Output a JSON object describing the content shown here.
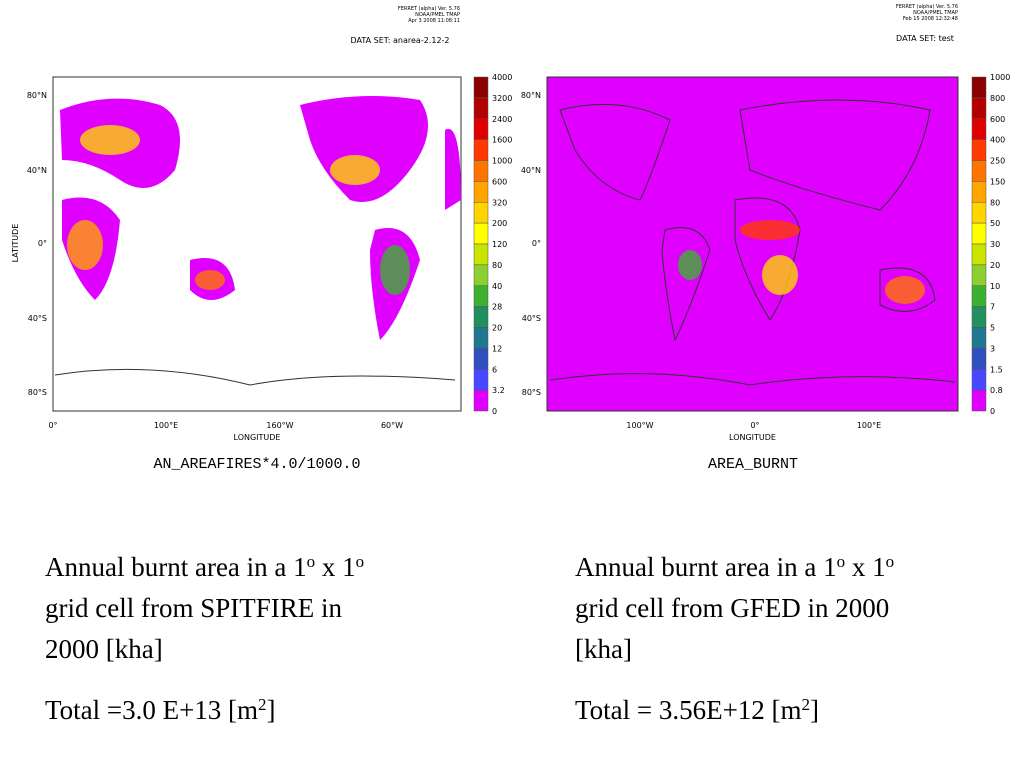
{
  "panels": [
    {
      "header": [
        "FERRET (alpha) Ver. 5.76",
        "NOAA/PMEL TMAP",
        "Apr 3 2008 11:08:11"
      ],
      "dataset": "DATA SET: anarea-2.12-2",
      "y_axis_label": "LATITUDE",
      "x_axis_label": "LONGITUDE",
      "yticks": [
        "80°N",
        "40°N",
        "0°",
        "40°S",
        "80°S"
      ],
      "xticks": [
        "0°",
        "100°E",
        "160°W",
        "60°W"
      ],
      "colorbar_labels": [
        "4000",
        "3200",
        "2400",
        "1600",
        "1000",
        "600",
        "320",
        "200",
        "120",
        "80",
        "40",
        "28",
        "20",
        "12",
        "6",
        "3.2",
        "0"
      ],
      "variable": "AN_AREAFIRES*4.0/1000.0"
    },
    {
      "header": [
        "FERRET (alpha) Ver. 5.76",
        "NOAA/PMEL TMAP",
        "Feb 15 2008 12:32:48"
      ],
      "dataset": "DATA SET: test",
      "x_axis_label": "LONGITUDE",
      "yticks": [
        "80°N",
        "40°N",
        "0°",
        "40°S",
        "80°S"
      ],
      "xticks": [
        "100°W",
        "0°",
        "100°E"
      ],
      "colorbar_labels": [
        "1000",
        "800",
        "600",
        "400",
        "250",
        "150",
        "80",
        "50",
        "30",
        "20",
        "10",
        "7",
        "5",
        "3",
        "1.5",
        "0.8",
        "0"
      ],
      "variable": "AREA_BURNT"
    }
  ],
  "colorbar_colors": [
    "#8b0000",
    "#b40000",
    "#e00000",
    "#ff3a00",
    "#ff7400",
    "#ffa400",
    "#ffd400",
    "#ffff00",
    "#c8e400",
    "#8cd030",
    "#3cb030",
    "#209060",
    "#1f7890",
    "#3050c0",
    "#4848ff",
    "#e000ff"
  ],
  "captions": [
    {
      "lines": [
        [
          {
            "t": "Annual burnt area in a 1"
          },
          {
            "sup": "o"
          },
          {
            "t": " x 1"
          },
          {
            "sup": "o"
          }
        ],
        [
          {
            "t": "grid cell from SPITFIRE in"
          }
        ],
        [
          {
            "t": "2000 [kha]"
          }
        ]
      ],
      "total": [
        {
          "t": "Total =3.0 E+13 [m"
        },
        {
          "sup": "2"
        },
        {
          "t": "]"
        }
      ]
    },
    {
      "lines": [
        [
          {
            "t": "Annual burnt area in a 1"
          },
          {
            "sup": "o"
          },
          {
            "t": " x 1"
          },
          {
            "sup": "o"
          }
        ],
        [
          {
            "t": "grid cell from GFED in 2000"
          }
        ],
        [
          {
            "t": "[kha]"
          }
        ]
      ],
      "total": [
        {
          "t": "Total = 3.56E+12 [m"
        },
        {
          "sup": "2"
        },
        {
          "t": "]"
        }
      ]
    }
  ]
}
